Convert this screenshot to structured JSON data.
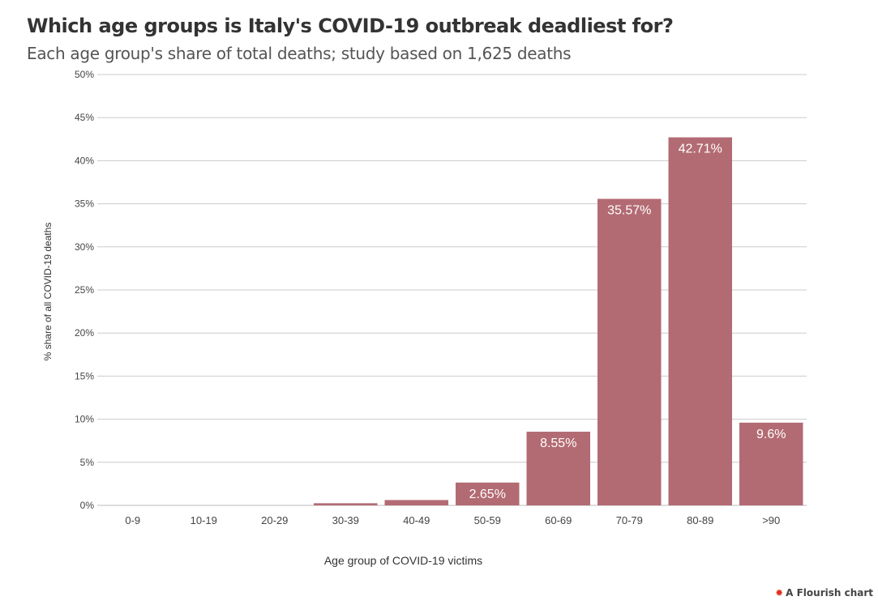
{
  "header": {
    "title": "Which age groups is Italy's COVID-19 outbreak deadliest for?",
    "subtitle": "Each age group's share of total deaths; study based on 1,625 deaths"
  },
  "credit": {
    "icon": "flourish-logo-icon",
    "label": "A Flourish chart"
  },
  "chart_data": {
    "type": "bar",
    "categories": [
      "0-9",
      "10-19",
      "20-29",
      "30-39",
      "40-49",
      "50-59",
      "60-69",
      "70-79",
      "80-89",
      ">90"
    ],
    "values": [
      0,
      0,
      0,
      0.25,
      0.62,
      2.65,
      8.55,
      35.57,
      42.71,
      9.6
    ],
    "data_labels": [
      "",
      "",
      "",
      "",
      "",
      "2.65%",
      "8.55%",
      "35.57%",
      "42.71%",
      "9.6%"
    ],
    "xlabel": "Age group of COVID-19 victims",
    "ylabel": "% share of all COVID-19 deaths",
    "ylim": [
      0,
      50
    ],
    "yticks": [
      "0%",
      "5%",
      "10%",
      "15%",
      "20%",
      "25%",
      "30%",
      "35%",
      "40%",
      "45%",
      "50%"
    ],
    "grid": true,
    "bar_color": "#b36b73"
  }
}
